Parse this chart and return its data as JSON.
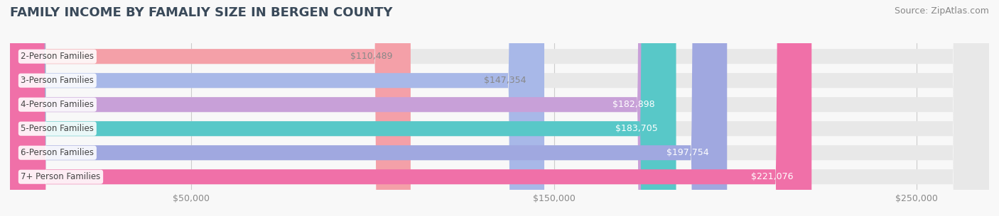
{
  "title": "FAMILY INCOME BY FAMALIY SIZE IN BERGEN COUNTY",
  "source": "Source: ZipAtlas.com",
  "categories": [
    "2-Person Families",
    "3-Person Families",
    "4-Person Families",
    "5-Person Families",
    "6-Person Families",
    "7+ Person Families"
  ],
  "values": [
    110489,
    147354,
    182898,
    183705,
    197754,
    221076
  ],
  "labels": [
    "$110,489",
    "$147,354",
    "$182,898",
    "$183,705",
    "$197,754",
    "$221,076"
  ],
  "bar_colors": [
    "#f4a0a8",
    "#a8b8e8",
    "#c8a0d8",
    "#58c8c8",
    "#a0a8e0",
    "#f070a8"
  ],
  "bar_bg_color": "#e8e8e8",
  "label_colors": [
    "#888888",
    "#888888",
    "#ffffff",
    "#ffffff",
    "#ffffff",
    "#ffffff"
  ],
  "x_ticks": [
    50000,
    150000,
    250000
  ],
  "x_tick_labels": [
    "$50,000",
    "$150,000",
    "$250,000"
  ],
  "xlim": [
    0,
    270000
  ],
  "title_color": "#3a4a5a",
  "title_fontsize": 13,
  "source_fontsize": 9,
  "bar_label_fontsize": 9,
  "category_fontsize": 8.5,
  "background_color": "#f8f8f8"
}
